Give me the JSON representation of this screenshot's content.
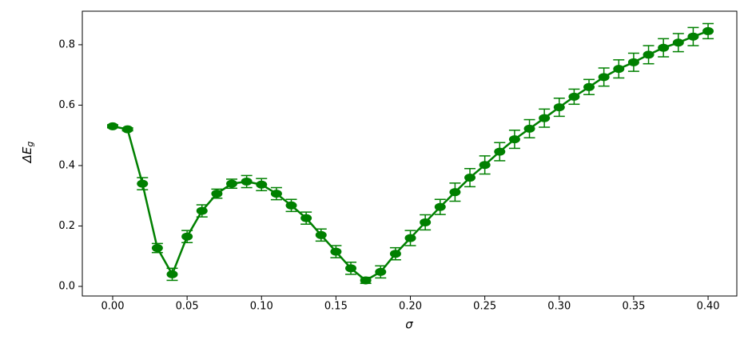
{
  "chart_data": {
    "type": "errorbar-line",
    "xlabel": "σ",
    "ylabel": "ΔE",
    "ylabel_subscript": "g",
    "color": "#008000",
    "x": [
      0.0,
      0.01,
      0.02,
      0.03,
      0.04,
      0.05,
      0.06,
      0.07,
      0.08,
      0.09,
      0.1,
      0.11,
      0.12,
      0.13,
      0.14,
      0.15,
      0.16,
      0.17,
      0.18,
      0.19,
      0.2,
      0.21,
      0.22,
      0.23,
      0.24,
      0.25,
      0.26,
      0.27,
      0.28,
      0.29,
      0.3,
      0.31,
      0.32,
      0.33,
      0.34,
      0.35,
      0.36,
      0.37,
      0.38,
      0.39,
      0.4
    ],
    "values": [
      0.53,
      0.52,
      0.34,
      0.127,
      0.04,
      0.165,
      0.25,
      0.307,
      0.34,
      0.347,
      0.337,
      0.307,
      0.268,
      0.226,
      0.17,
      0.115,
      0.06,
      0.02,
      0.048,
      0.108,
      0.16,
      0.212,
      0.263,
      0.312,
      0.36,
      0.402,
      0.446,
      0.487,
      0.522,
      0.557,
      0.593,
      0.628,
      0.66,
      0.693,
      0.72,
      0.742,
      0.767,
      0.79,
      0.807,
      0.827,
      0.845
    ],
    "errors": [
      0.005,
      0.005,
      0.02,
      0.015,
      0.02,
      0.02,
      0.02,
      0.015,
      0.015,
      0.02,
      0.02,
      0.02,
      0.02,
      0.02,
      0.02,
      0.02,
      0.02,
      0.01,
      0.02,
      0.02,
      0.025,
      0.025,
      0.025,
      0.03,
      0.03,
      0.03,
      0.03,
      0.03,
      0.03,
      0.03,
      0.03,
      0.025,
      0.025,
      0.03,
      0.03,
      0.03,
      0.03,
      0.03,
      0.03,
      0.03,
      0.025
    ],
    "xlim": [
      -0.0204,
      0.4193
    ],
    "ylim": [
      -0.0318,
      0.911
    ],
    "xticks": [
      {
        "value": 0,
        "label": "0.00"
      },
      0.05,
      {
        "value": 0.1,
        "label": "0.10"
      },
      0.15,
      {
        "value": 0.2,
        "label": "0.20"
      },
      0.25,
      {
        "value": 0.3,
        "label": "0.30"
      },
      0.35,
      {
        "value": 0.4,
        "label": "0.40"
      }
    ],
    "yticks": [
      {
        "value": 0,
        "label": "0.0"
      },
      0.2,
      0.4,
      0.6,
      0.8
    ]
  }
}
